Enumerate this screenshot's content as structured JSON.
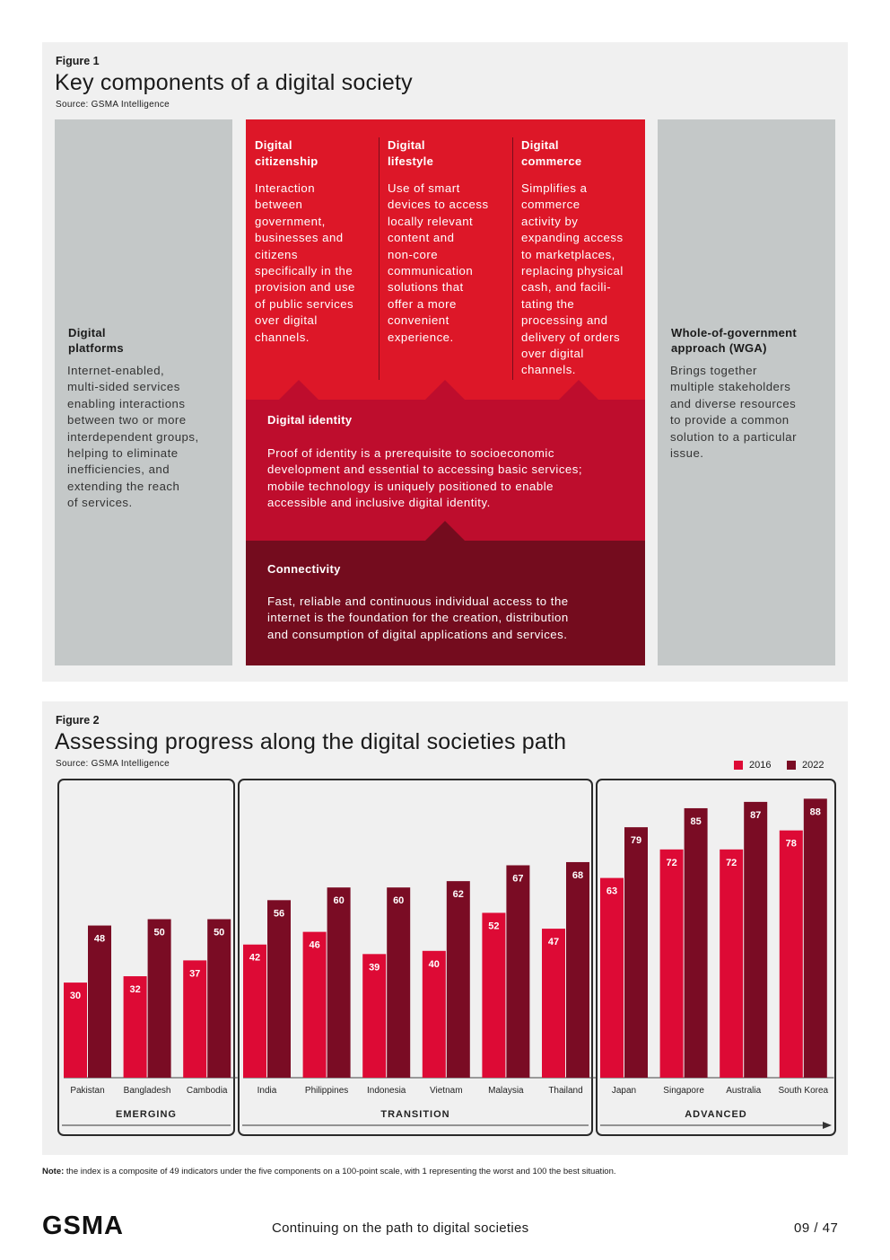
{
  "figure1": {
    "label": "Figure 1",
    "title": "Key components of a digital society",
    "source": "Source: GSMA Intelligence",
    "platforms": {
      "title_line1": "Digital",
      "title_line2": "platforms",
      "lines": [
        "Internet-enabled,",
        "multi-sided services",
        "enabling interactions",
        "between two or more",
        "interdependent groups,",
        "helping to eliminate",
        "inefficiencies, and",
        "extending the reach",
        "of services."
      ]
    },
    "wga": {
      "title_line1": "Whole-of-government",
      "title_line2": "approach (WGA)",
      "lines": [
        "Brings together",
        "multiple stakeholders",
        "and diverse resources",
        "to provide a common",
        "solution to a particular",
        "issue."
      ]
    },
    "citizenship": {
      "title_line1": "Digital",
      "title_line2": "citizenship",
      "lines": [
        "Interaction",
        "between",
        "government,",
        "businesses and",
        "citizens",
        "specifically in the",
        "provision and use",
        "of public services",
        "over digital",
        "channels."
      ]
    },
    "lifestyle": {
      "title_line1": "Digital",
      "title_line2": "lifestyle",
      "lines": [
        "Use of smart",
        "devices to access",
        "locally relevant",
        "content and",
        "non-core",
        "communication",
        "solutions that",
        "offer a more",
        "convenient",
        "experience."
      ]
    },
    "commerce": {
      "title_line1": "Digital",
      "title_line2": "commerce",
      "lines": [
        "Simplifies a",
        "commerce",
        "activity by",
        "expanding access",
        "to marketplaces,",
        "replacing physical",
        "cash, and facili-",
        "tating the",
        "processing and",
        "delivery of orders",
        "over digital",
        "channels."
      ]
    },
    "identity": {
      "title": "Digital identity",
      "lines": [
        "Proof of identity is a prerequisite to socioeconomic",
        "development and essential to accessing basic services;",
        "mobile technology is uniquely positioned to enable",
        "accessible and inclusive digital identity."
      ]
    },
    "connectivity": {
      "title": "Connectivity",
      "lines": [
        "Fast, reliable and continuous individual access to the",
        "internet is the foundation for the creation, distribution",
        "and consumption of digital applications and services."
      ]
    }
  },
  "figure2": {
    "label": "Figure 2",
    "title": "Assessing progress along the digital societies path",
    "source": "Source: GSMA Intelligence"
  },
  "chart_data": {
    "type": "bar",
    "title": "Assessing progress along the digital societies path",
    "ylim": [
      0,
      100
    ],
    "xlabel": "",
    "ylabel": "",
    "legend": "top-right",
    "colors": {
      "2016": "#dd0a35",
      "2022": "#7a0c24"
    },
    "series_names": [
      "2016",
      "2022"
    ],
    "groups": [
      {
        "label": "EMERGING",
        "countries": [
          {
            "name": "Pakistan",
            "v2016": 30,
            "v2022": 48
          },
          {
            "name": "Bangladesh",
            "v2016": 32,
            "v2022": 50
          },
          {
            "name": "Cambodia",
            "v2016": 37,
            "v2022": 50
          }
        ]
      },
      {
        "label": "TRANSITION",
        "countries": [
          {
            "name": "India",
            "v2016": 42,
            "v2022": 56
          },
          {
            "name": "Philippines",
            "v2016": 46,
            "v2022": 60
          },
          {
            "name": "Indonesia",
            "v2016": 39,
            "v2022": 60
          },
          {
            "name": "Vietnam",
            "v2016": 40,
            "v2022": 62
          },
          {
            "name": "Malaysia",
            "v2016": 52,
            "v2022": 67
          },
          {
            "name": "Thailand",
            "v2016": 47,
            "v2022": 68
          }
        ]
      },
      {
        "label": "ADVANCED",
        "countries": [
          {
            "name": "Japan",
            "v2016": 63,
            "v2022": 79
          },
          {
            "name": "Singapore",
            "v2016": 72,
            "v2022": 85
          },
          {
            "name": "Australia",
            "v2016": 72,
            "v2022": 87
          },
          {
            "name": "South Korea",
            "v2016": 78,
            "v2022": 88
          }
        ]
      }
    ]
  },
  "note": {
    "label": "Note:",
    "text": " the index is a composite of 49 indicators under the five components on a 100-point scale, with 1 representing the worst and 100 the best situation."
  },
  "footer": {
    "logo": "GSMA",
    "title": "Continuing on the path to digital societies",
    "page": "09 / 47"
  }
}
